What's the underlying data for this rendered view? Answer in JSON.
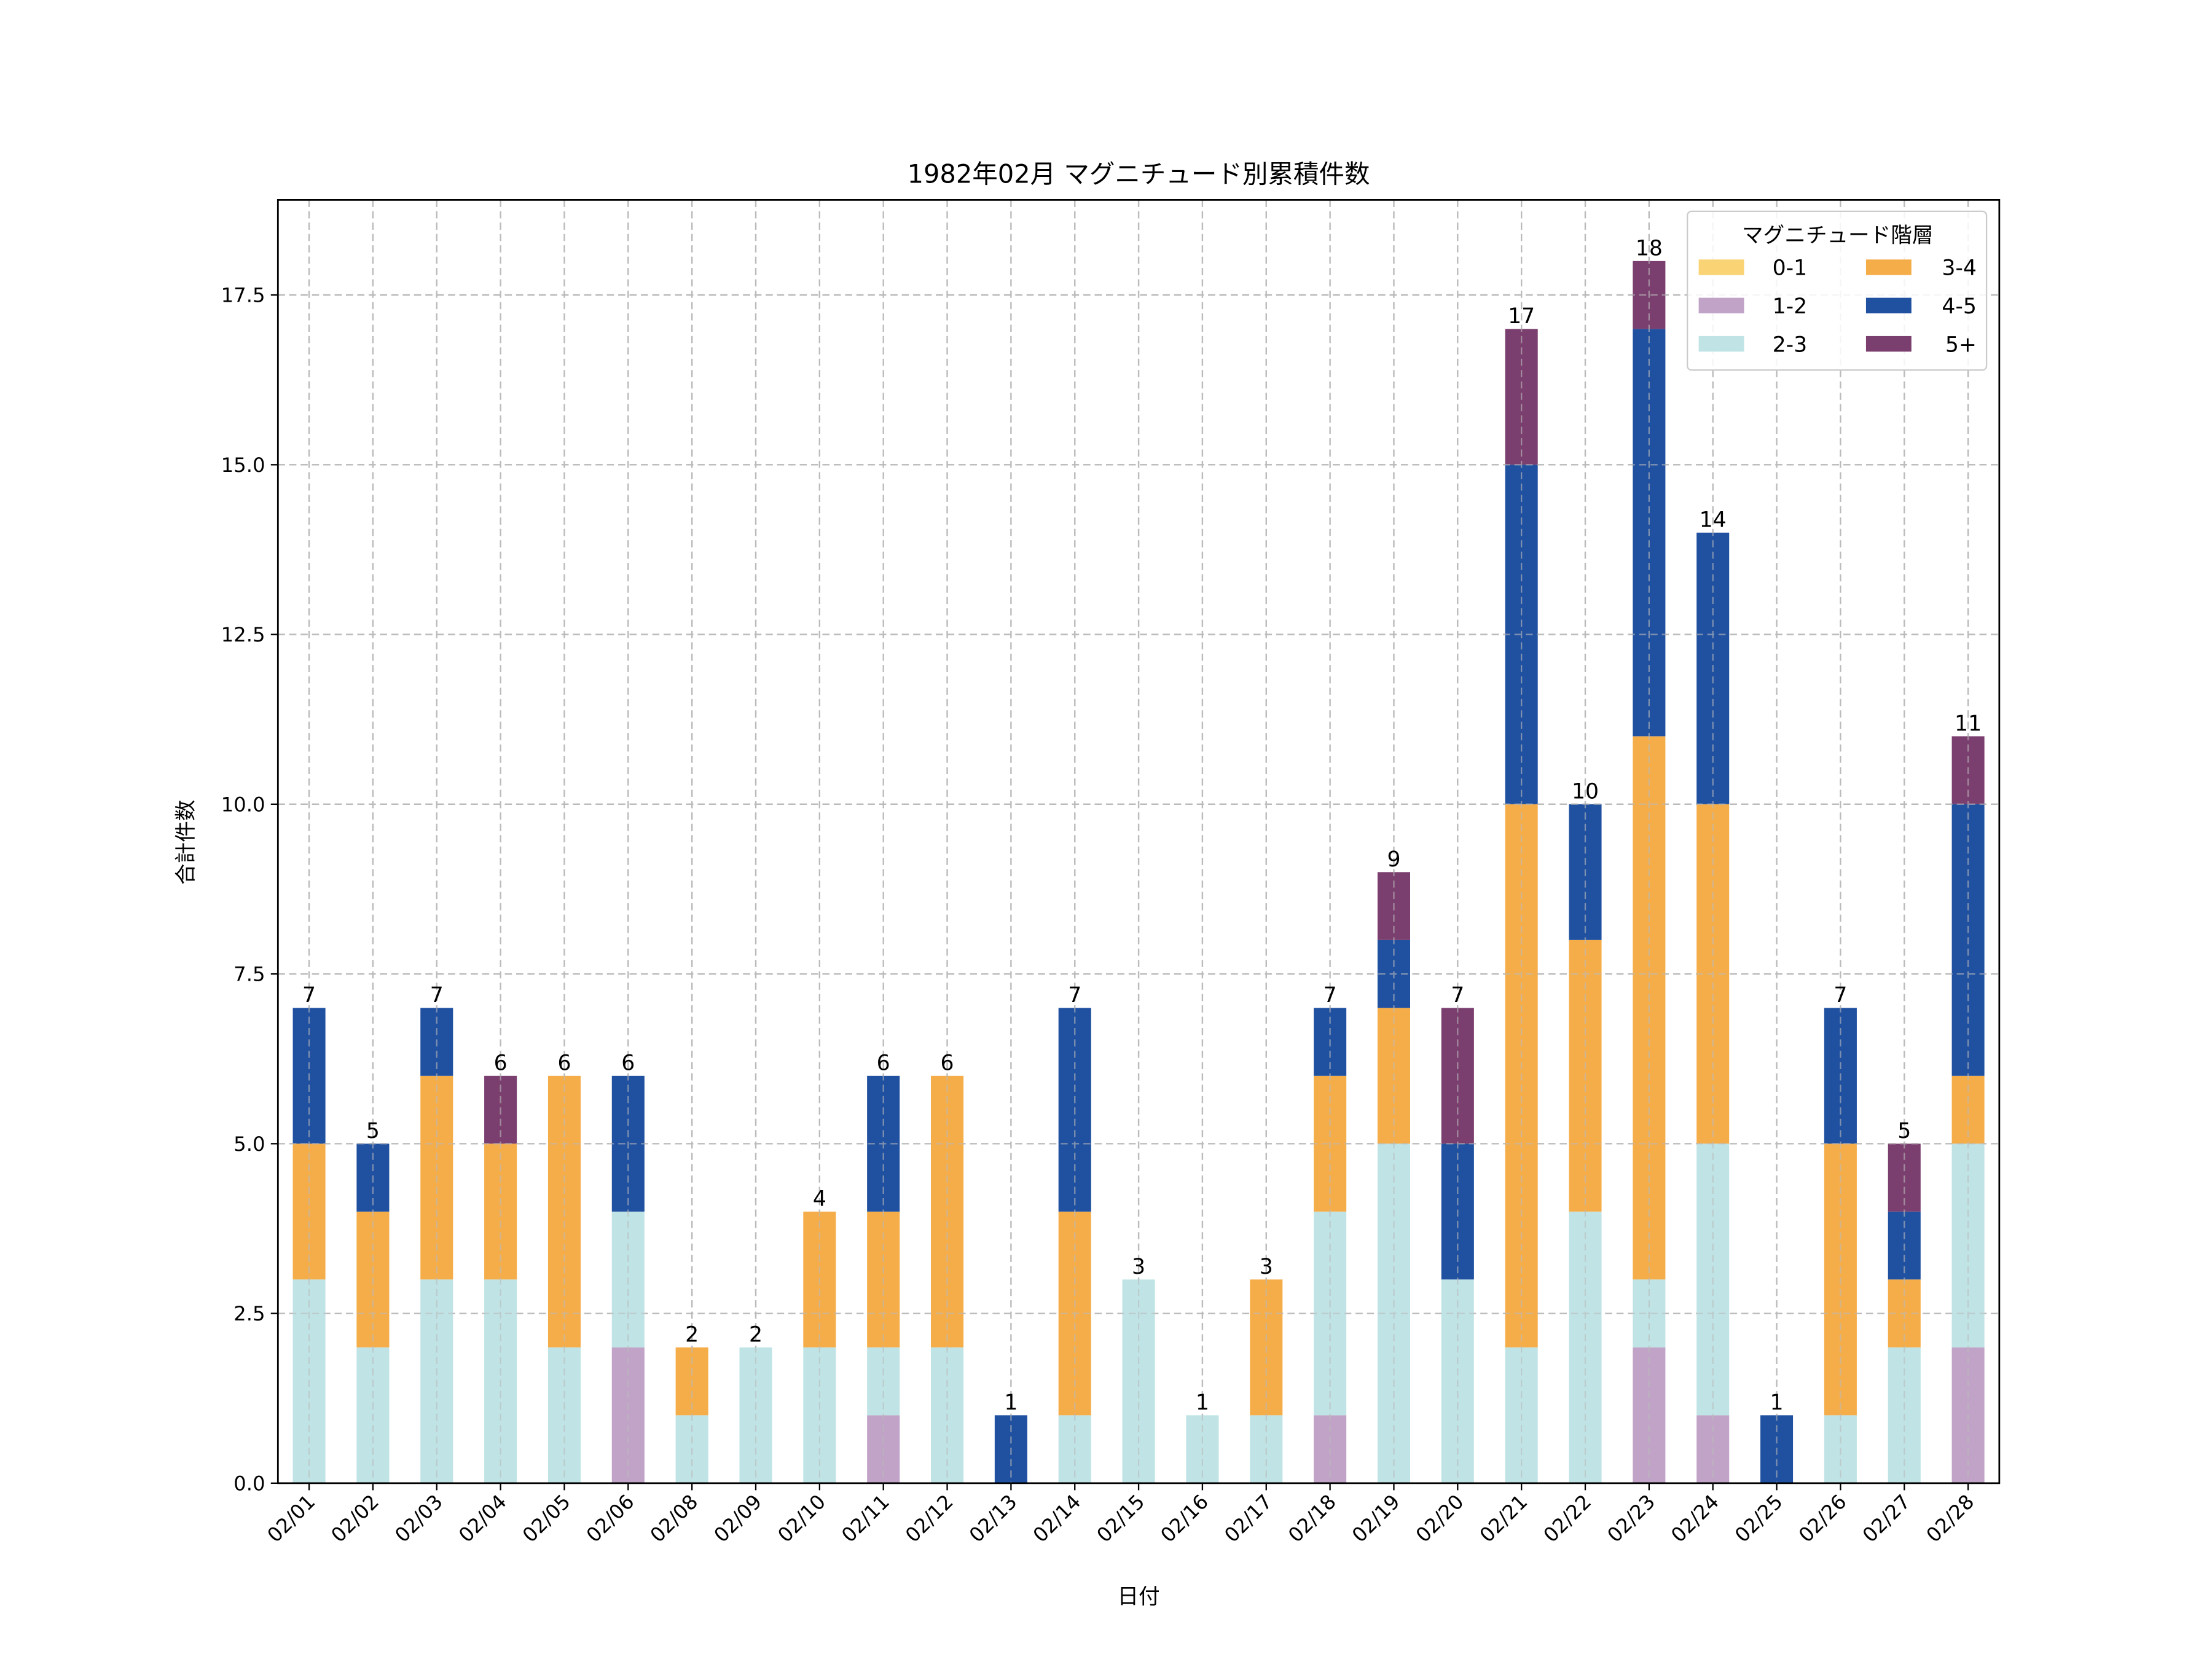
{
  "chart_data": {
    "type": "bar",
    "stacked": true,
    "title": "1982年02月 マグニチュード別累積件数",
    "xlabel": "日付",
    "ylabel": "合計件数",
    "ylim": [
      0,
      18.9
    ],
    "yticks": [
      "0.0",
      "2.5",
      "5.0",
      "7.5",
      "10.0",
      "12.5",
      "15.0",
      "17.5"
    ],
    "ytick_values": [
      0,
      2.5,
      5,
      7.5,
      10,
      12.5,
      15,
      17.5
    ],
    "grid": true,
    "legend": {
      "title": "マグニチュード階層",
      "placement": "top-right",
      "columns": 2
    },
    "categories": [
      "02/01",
      "02/02",
      "02/03",
      "02/04",
      "02/05",
      "02/06",
      "02/08",
      "02/09",
      "02/10",
      "02/11",
      "02/12",
      "02/13",
      "02/14",
      "02/15",
      "02/16",
      "02/17",
      "02/18",
      "02/19",
      "02/20",
      "02/21",
      "02/22",
      "02/23",
      "02/24",
      "02/25",
      "02/26",
      "02/27",
      "02/28"
    ],
    "series": [
      {
        "name": "0-1",
        "color": "#FAD375",
        "values": [
          0,
          0,
          0,
          0,
          0,
          0,
          0,
          0,
          0,
          0,
          0,
          0,
          0,
          0,
          0,
          0,
          0,
          0,
          0,
          0,
          0,
          0,
          0,
          0,
          0,
          0,
          0
        ]
      },
      {
        "name": "1-2",
        "color": "#C0A3C7",
        "values": [
          0,
          0,
          0,
          0,
          0,
          2,
          0,
          0,
          0,
          1,
          0,
          0,
          0,
          0,
          0,
          0,
          1,
          0,
          0,
          0,
          0,
          2,
          1,
          0,
          0,
          0,
          2
        ]
      },
      {
        "name": "2-3",
        "color": "#C0E4E6",
        "values": [
          3,
          2,
          3,
          3,
          2,
          2,
          1,
          2,
          2,
          1,
          2,
          0,
          1,
          3,
          1,
          1,
          3,
          5,
          3,
          2,
          4,
          1,
          4,
          0,
          1,
          2,
          3
        ]
      },
      {
        "name": "3-4",
        "color": "#F5AD4A",
        "values": [
          2,
          2,
          3,
          2,
          4,
          0,
          1,
          0,
          2,
          2,
          4,
          0,
          3,
          0,
          0,
          2,
          2,
          2,
          0,
          8,
          4,
          8,
          5,
          0,
          4,
          1,
          1
        ]
      },
      {
        "name": "4-5",
        "color": "#2050A0",
        "values": [
          2,
          1,
          1,
          0,
          0,
          2,
          0,
          0,
          0,
          2,
          0,
          1,
          3,
          0,
          0,
          0,
          1,
          1,
          2,
          5,
          2,
          6,
          4,
          1,
          2,
          1,
          4
        ]
      },
      {
        "name": "5+",
        "color": "#7B3F6F",
        "values": [
          0,
          0,
          0,
          1,
          0,
          0,
          0,
          0,
          0,
          0,
          0,
          0,
          0,
          0,
          0,
          0,
          0,
          1,
          2,
          2,
          0,
          1,
          0,
          0,
          0,
          1,
          1
        ]
      }
    ],
    "totals": [
      "7",
      "5",
      "7",
      "6",
      "6",
      "6",
      "2",
      "2",
      "4",
      "6",
      "6",
      "1",
      "7",
      "3",
      "1",
      "3",
      "7",
      "9",
      "7",
      "17",
      "10",
      "18",
      "14",
      "1",
      "7",
      "5",
      "11"
    ]
  }
}
